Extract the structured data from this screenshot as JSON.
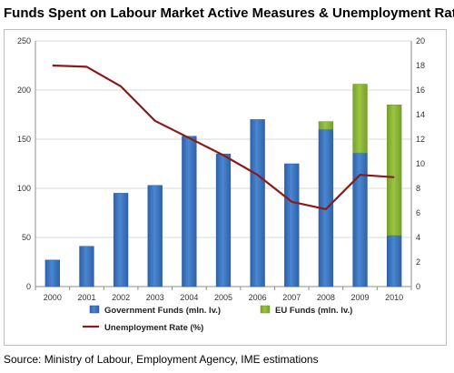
{
  "title": "Funds Spent on Labour Market Active Measures & Unemployment Rate",
  "source": "Source: Ministry of Labour, Employment Agency, IME estimations",
  "colors": {
    "government": "#4a86d1",
    "eu": "#9dc441",
    "unemployment": "#8b1a1a",
    "grid": "#d9d9d9",
    "axis": "#8c8c8c"
  },
  "chart_data": {
    "type": "bar",
    "categories": [
      "2000",
      "2001",
      "2002",
      "2003",
      "2004",
      "2005",
      "2006",
      "2007",
      "2008",
      "2009",
      "2010"
    ],
    "series": [
      {
        "name": "Government Funds (mln. lv.)",
        "type": "bar",
        "stack": "funds",
        "axis": "left",
        "values": [
          27,
          41,
          95,
          103,
          153,
          135,
          170,
          125,
          160,
          136,
          52
        ]
      },
      {
        "name": "EU Funds (mln. lv.)",
        "type": "bar",
        "stack": "funds",
        "axis": "left",
        "values": [
          0,
          0,
          0,
          0,
          0,
          0,
          0,
          0,
          8,
          70,
          133
        ]
      },
      {
        "name": "Unemployment Rate (%)",
        "type": "line",
        "axis": "right",
        "values": [
          18.0,
          17.9,
          16.3,
          13.5,
          12.1,
          10.7,
          9.1,
          6.9,
          6.3,
          9.1,
          8.9
        ]
      }
    ],
    "y_left": {
      "ticks": [
        "0",
        "50",
        "100",
        "150",
        "200",
        "250"
      ],
      "ylim": [
        0,
        250
      ]
    },
    "y_right": {
      "ticks": [
        "0",
        "2",
        "4",
        "6",
        "8",
        "10",
        "12",
        "14",
        "16",
        "18",
        "20"
      ],
      "ylim": [
        0,
        20
      ]
    },
    "grid": true,
    "legend_position": "bottom"
  }
}
